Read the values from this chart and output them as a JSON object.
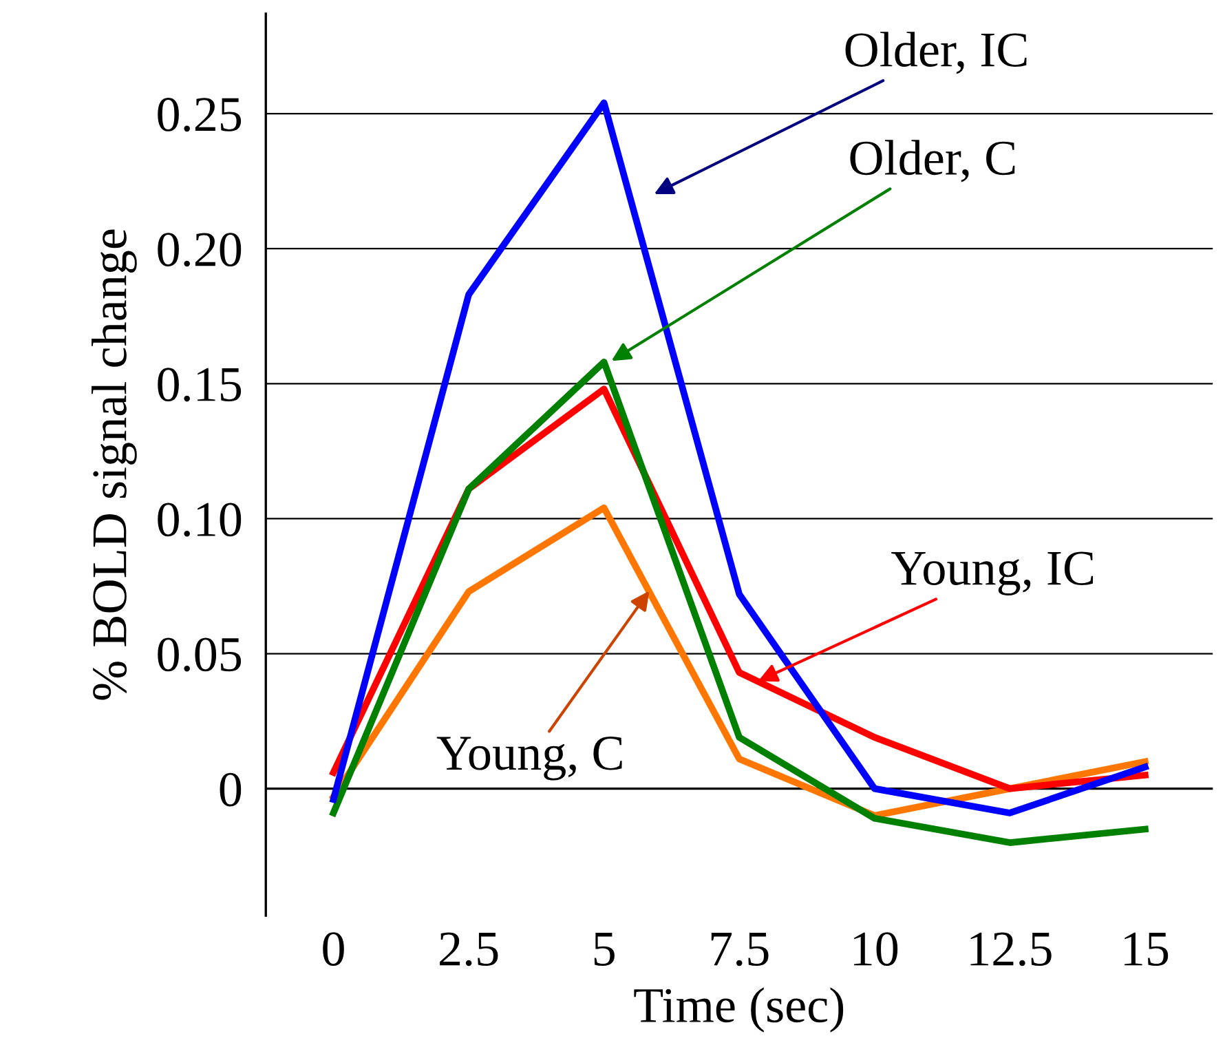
{
  "chart_data": {
    "type": "line",
    "xlabel": "Time (sec)",
    "ylabel": "% BOLD signal change",
    "categories": [
      "0",
      "2.5",
      "5",
      "7.5",
      "10",
      "12.5",
      "15"
    ],
    "series": [
      {
        "name": "Older, IC",
        "color": "#0000ff",
        "values": [
          -0.004,
          0.183,
          0.254,
          0.072,
          0.0,
          -0.009,
          0.008
        ]
      },
      {
        "name": "Older, C",
        "color": "#008000",
        "values": [
          -0.009,
          0.111,
          0.158,
          0.019,
          -0.011,
          -0.02,
          -0.015
        ]
      },
      {
        "name": "Young, IC",
        "color": "#ff0000",
        "values": [
          0.006,
          0.111,
          0.148,
          0.043,
          0.019,
          0.0,
          0.005
        ]
      },
      {
        "name": "Young, C",
        "color": "#ff7700",
        "values": [
          -0.003,
          0.073,
          0.104,
          0.011,
          -0.01,
          0.0,
          0.01
        ]
      }
    ],
    "ylim": [
      -0.047,
      0.287
    ],
    "yticks": [
      0,
      0.05,
      {
        "value": 0.1,
        "label": "0.10"
      },
      0.15,
      {
        "value": 0.2,
        "label": "0.20"
      },
      0.25
    ],
    "grid": "y",
    "legend": false,
    "marker": "none",
    "line_style": "solid"
  }
}
